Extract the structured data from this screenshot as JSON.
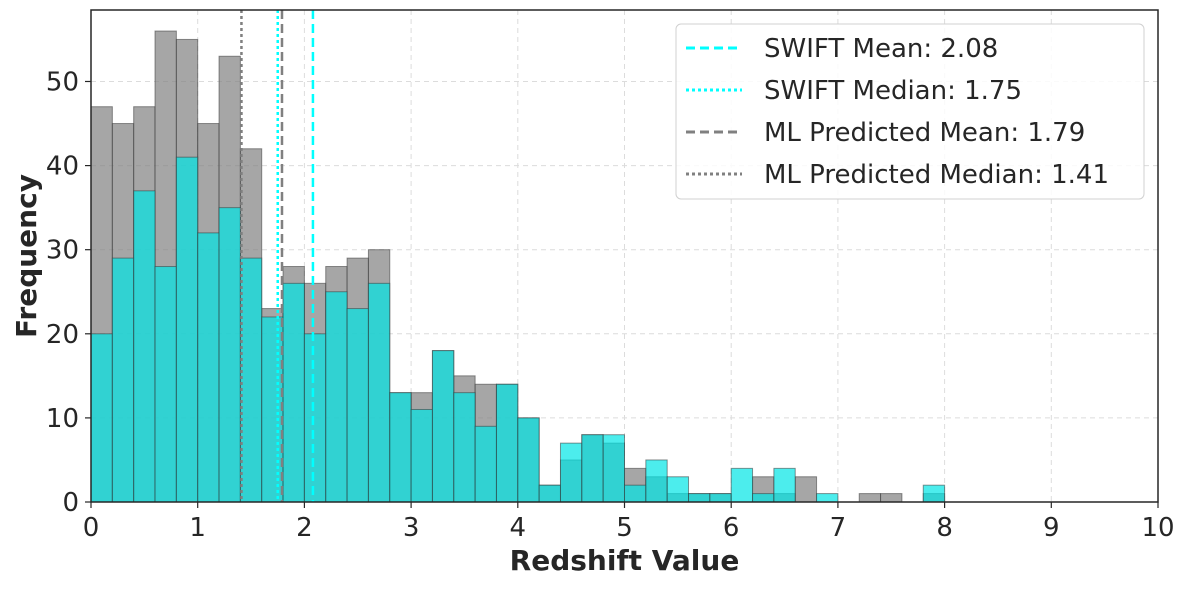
{
  "chart_data": {
    "type": "bar",
    "subtype": "overlaid-histogram",
    "title": "",
    "xlabel": "Redshift Value",
    "ylabel": "Frequency",
    "xlim": [
      0,
      10
    ],
    "ylim": [
      0,
      58.5
    ],
    "xticks": [
      0,
      1,
      2,
      3,
      4,
      5,
      6,
      7,
      8,
      9,
      10
    ],
    "yticks": [
      0,
      10,
      20,
      30,
      40,
      50
    ],
    "grid": true,
    "legend_position": "top-right",
    "bin_edges": [
      0,
      0.2,
      0.4,
      0.6,
      0.8,
      1.0,
      1.2,
      1.4,
      1.6,
      1.8,
      2.0,
      2.2,
      2.4,
      2.6,
      2.8,
      3.0,
      3.2,
      3.4,
      3.6,
      3.8,
      4.0,
      4.2,
      4.4,
      4.6,
      4.8,
      5.0,
      5.2,
      5.4,
      5.6,
      5.8,
      6.0,
      6.2,
      6.4,
      6.6,
      6.8,
      7.0,
      7.2,
      7.4,
      7.6,
      7.8,
      8.0,
      8.2
    ],
    "series": [
      {
        "role": "ML predicted",
        "color": "#808080",
        "values": [
          47,
          45,
          47,
          56,
          55,
          45,
          53,
          42,
          23,
          28,
          26,
          28,
          29,
          30,
          13,
          13,
          18,
          15,
          14,
          14,
          10,
          2,
          5,
          8,
          7,
          4,
          3,
          1,
          1,
          1,
          0,
          3,
          1,
          3,
          0,
          0,
          1,
          1,
          0,
          1,
          0
        ]
      },
      {
        "role": "SWIFT",
        "color": "#00e5e5",
        "values": [
          20,
          29,
          37,
          28,
          41,
          32,
          35,
          29,
          22,
          26,
          20,
          25,
          23,
          26,
          13,
          11,
          18,
          13,
          9,
          14,
          10,
          2,
          7,
          8,
          8,
          2,
          5,
          3,
          1,
          1,
          4,
          1,
          4,
          0,
          1,
          0,
          0,
          0,
          0,
          2,
          0
        ]
      }
    ],
    "reference_lines": [
      {
        "label": "SWIFT Mean: 2.08",
        "x": 2.08,
        "color": "#00ffff",
        "dash": "dashed"
      },
      {
        "label": "SWIFT Median: 1.75",
        "x": 1.75,
        "color": "#00ffff",
        "dash": "dotted"
      },
      {
        "label": "ML Predicted Mean: 1.79",
        "x": 1.79,
        "color": "#808080",
        "dash": "dashed"
      },
      {
        "label": "ML Predicted Median: 1.41",
        "x": 1.41,
        "color": "#808080",
        "dash": "dotted"
      }
    ]
  }
}
